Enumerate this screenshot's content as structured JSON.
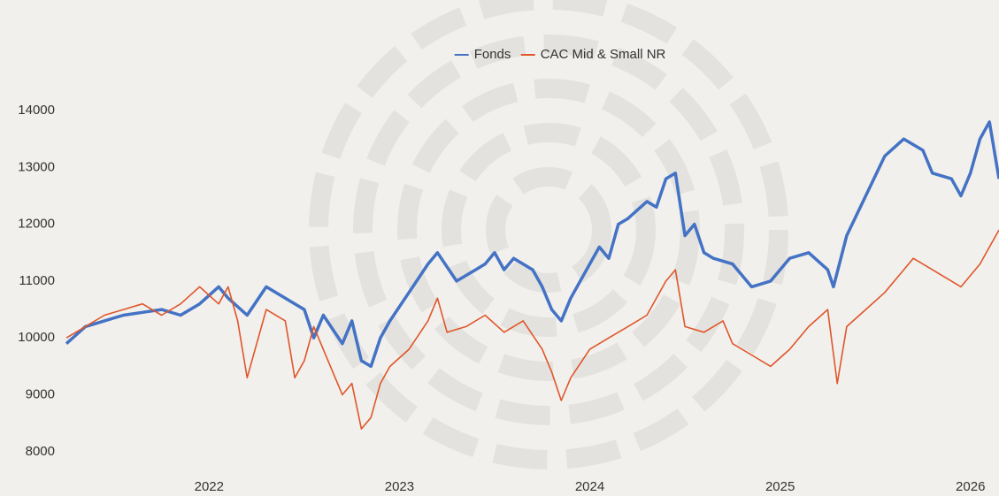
{
  "chart_data": {
    "type": "line",
    "xlim": [
      2021.25,
      2026.15
    ],
    "xticks": [
      2022,
      2023,
      2024,
      2025,
      2026
    ],
    "ylim": [
      7500,
      14400
    ],
    "yticks": [
      8000,
      9000,
      10000,
      11000,
      12000,
      13000,
      14000
    ],
    "legend": "top",
    "series": [
      {
        "name": "Fonds",
        "color": "#4472c4",
        "x": [
          2021.25,
          2021.35,
          2021.45,
          2021.55,
          2021.65,
          2021.75,
          2021.85,
          2021.95,
          2022.05,
          2022.1,
          2022.2,
          2022.3,
          2022.4,
          2022.5,
          2022.55,
          2022.6,
          2022.7,
          2022.75,
          2022.8,
          2022.85,
          2022.9,
          2022.95,
          2023.05,
          2023.15,
          2023.2,
          2023.3,
          2023.4,
          2023.45,
          2023.5,
          2023.55,
          2023.6,
          2023.7,
          2023.75,
          2023.8,
          2023.85,
          2023.9,
          2024.0,
          2024.05,
          2024.1,
          2024.15,
          2024.2,
          2024.3,
          2024.35,
          2024.4,
          2024.45,
          2024.5,
          2024.55,
          2024.6,
          2024.65,
          2024.75,
          2024.85,
          2024.95,
          2025.05,
          2025.15,
          2025.25,
          2025.28,
          2025.35,
          2025.45,
          2025.55,
          2025.65,
          2025.75,
          2025.8,
          2025.9,
          2025.95,
          2026.0,
          2026.05,
          2026.1,
          2026.15
        ],
        "values": [
          9900,
          10200,
          10300,
          10400,
          10450,
          10500,
          10400,
          10600,
          10900,
          10700,
          10400,
          10900,
          10700,
          10500,
          10000,
          10400,
          9900,
          10300,
          9600,
          9500,
          10000,
          10300,
          10800,
          11300,
          11500,
          11000,
          11200,
          11300,
          11500,
          11200,
          11400,
          11200,
          10900,
          10500,
          10300,
          10700,
          11300,
          11600,
          11400,
          12000,
          12100,
          12400,
          12300,
          12800,
          12900,
          11800,
          12000,
          11500,
          11400,
          11300,
          10900,
          11000,
          11400,
          11500,
          11200,
          10900,
          11800,
          12500,
          13200,
          13500,
          13300,
          12900,
          12800,
          12500,
          12900,
          13500,
          13800,
          12800
        ]
      },
      {
        "name": "CAC Mid & Small NR",
        "color": "#e0562a",
        "x": [
          2021.25,
          2021.35,
          2021.45,
          2021.55,
          2021.65,
          2021.75,
          2021.85,
          2021.95,
          2022.05,
          2022.1,
          2022.15,
          2022.2,
          2022.3,
          2022.4,
          2022.45,
          2022.5,
          2022.55,
          2022.65,
          2022.7,
          2022.75,
          2022.8,
          2022.85,
          2022.9,
          2022.95,
          2023.05,
          2023.15,
          2023.2,
          2023.25,
          2023.35,
          2023.45,
          2023.55,
          2023.65,
          2023.75,
          2023.8,
          2023.85,
          2023.9,
          2024.0,
          2024.1,
          2024.2,
          2024.3,
          2024.4,
          2024.45,
          2024.5,
          2024.6,
          2024.7,
          2024.75,
          2024.85,
          2024.95,
          2025.05,
          2025.15,
          2025.25,
          2025.3,
          2025.35,
          2025.45,
          2025.55,
          2025.7,
          2025.8,
          2025.9,
          2025.95,
          2026.05,
          2026.1,
          2026.15
        ],
        "values": [
          10000,
          10200,
          10400,
          10500,
          10600,
          10400,
          10600,
          10900,
          10600,
          10900,
          10300,
          9300,
          10500,
          10300,
          9300,
          9600,
          10200,
          9400,
          9000,
          9200,
          8400,
          8600,
          9200,
          9500,
          9800,
          10300,
          10700,
          10100,
          10200,
          10400,
          10100,
          10300,
          9800,
          9400,
          8900,
          9300,
          9800,
          10000,
          10200,
          10400,
          11000,
          11200,
          10200,
          10100,
          10300,
          9900,
          9700,
          9500,
          9800,
          10200,
          10500,
          9200,
          10200,
          10500,
          10800,
          11400,
          11200,
          11000,
          10900,
          11300,
          11600,
          11900
        ]
      }
    ]
  }
}
